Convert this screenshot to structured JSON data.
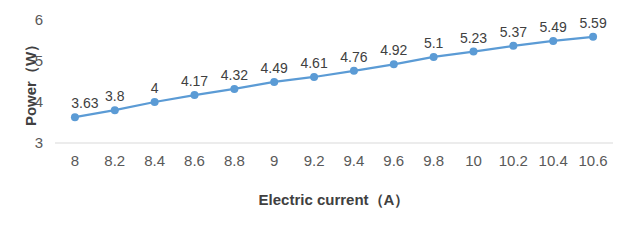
{
  "chart_data": {
    "type": "line",
    "x_label": "Electric current（A）",
    "y_label": "Power（W）",
    "categories": [
      "8",
      "8.2",
      "8.4",
      "8.6",
      "8.8",
      "9",
      "9.2",
      "9.4",
      "9.6",
      "9.8",
      "10",
      "10.2",
      "10.4",
      "10.6"
    ],
    "values": [
      3.63,
      3.8,
      4,
      4.17,
      4.32,
      4.49,
      4.61,
      4.76,
      4.92,
      5.1,
      5.23,
      5.37,
      5.49,
      5.59
    ],
    "color": "#5b9bd5",
    "marker": "circle",
    "ylim": [
      3,
      6
    ],
    "yticks": [
      3,
      4,
      5,
      6
    ],
    "grid": false,
    "data_labels": true
  }
}
